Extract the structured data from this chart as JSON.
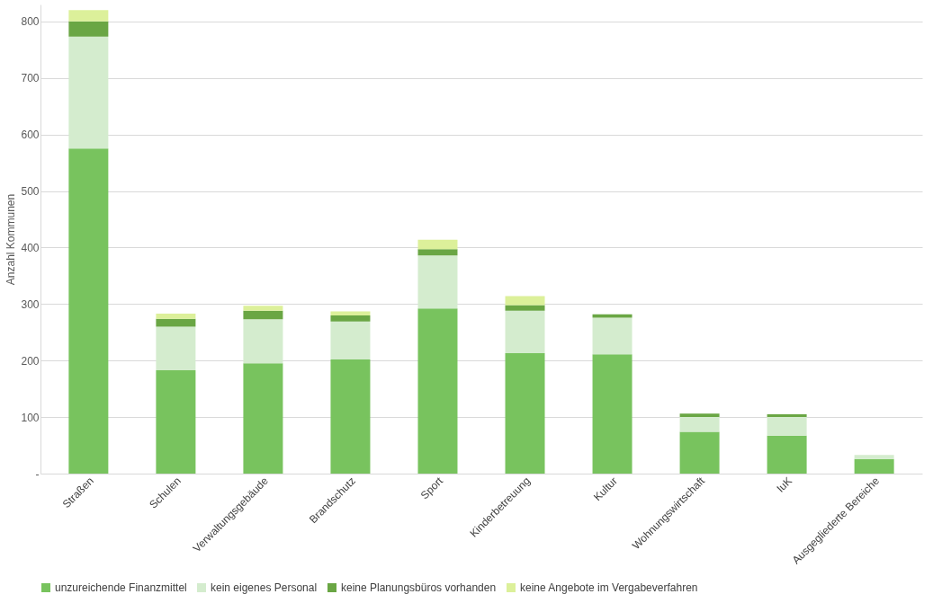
{
  "chart_data": {
    "type": "bar",
    "stacked": true,
    "ylabel": "Anzahl Kommunen",
    "categories": [
      "Straßen",
      "Schulen",
      "Verwaltungsgebäude",
      "Brandschutz",
      "Sport",
      "Kinderbetreuung",
      "Kultur",
      "Wohnungswirtschaft",
      "IuK",
      "Ausgegliederte Bereiche"
    ],
    "series": [
      {
        "name": "unzureichende Finanzmittel",
        "color": "#78c35e",
        "values": [
          575,
          183,
          195,
          202,
          292,
          213,
          211,
          74,
          67,
          26
        ]
      },
      {
        "name": "kein eigenes Personal",
        "color": "#d4ecce",
        "values": [
          198,
          77,
          78,
          67,
          94,
          75,
          65,
          26,
          33,
          7
        ]
      },
      {
        "name": "keine Planungsbüros vorhanden",
        "color": "#6aa644",
        "values": [
          27,
          14,
          15,
          11,
          11,
          10,
          6,
          6,
          5,
          0
        ]
      },
      {
        "name": "keine Angebote im Vergabeverfahren",
        "color": "#dcf09a",
        "values": [
          20,
          9,
          9,
          7,
          17,
          16,
          0,
          0,
          0,
          0
        ]
      }
    ],
    "ylim": [
      0,
      830
    ],
    "yticks": [
      {
        "value": 0,
        "label": "-"
      },
      100,
      200,
      300,
      400,
      500,
      600,
      700,
      800
    ],
    "grid": "y",
    "legend": "bottom"
  }
}
